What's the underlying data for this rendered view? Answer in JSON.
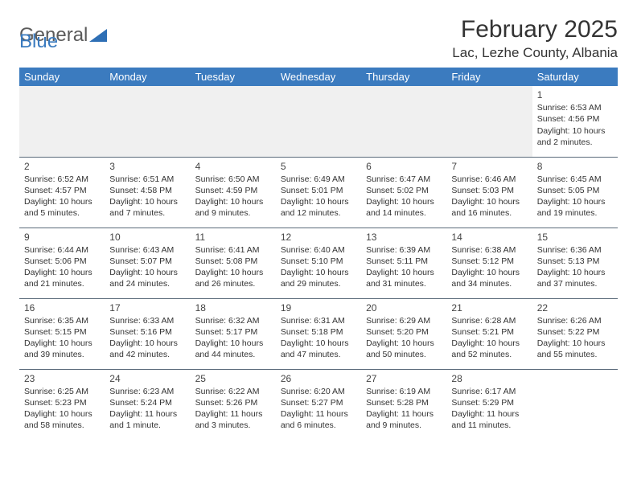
{
  "logo": {
    "word1": "General",
    "word2": "Blue"
  },
  "header": {
    "month_title": "February 2025",
    "location": "Lac, Lezhe County, Albania"
  },
  "colors": {
    "header_bg": "#3b7bbf",
    "header_text": "#ffffff",
    "rule": "#5a6a7a",
    "empty_row_bg": "#f0f0f0",
    "text": "#333333",
    "logo_gray": "#5a5a5a",
    "logo_blue": "#3b7bbf"
  },
  "weekdays": [
    "Sunday",
    "Monday",
    "Tuesday",
    "Wednesday",
    "Thursday",
    "Friday",
    "Saturday"
  ],
  "weeks": [
    [
      null,
      null,
      null,
      null,
      null,
      null,
      {
        "day": "1",
        "sunrise": "Sunrise: 6:53 AM",
        "sunset": "Sunset: 4:56 PM",
        "daylight": "Daylight: 10 hours and 2 minutes."
      }
    ],
    [
      {
        "day": "2",
        "sunrise": "Sunrise: 6:52 AM",
        "sunset": "Sunset: 4:57 PM",
        "daylight": "Daylight: 10 hours and 5 minutes."
      },
      {
        "day": "3",
        "sunrise": "Sunrise: 6:51 AM",
        "sunset": "Sunset: 4:58 PM",
        "daylight": "Daylight: 10 hours and 7 minutes."
      },
      {
        "day": "4",
        "sunrise": "Sunrise: 6:50 AM",
        "sunset": "Sunset: 4:59 PM",
        "daylight": "Daylight: 10 hours and 9 minutes."
      },
      {
        "day": "5",
        "sunrise": "Sunrise: 6:49 AM",
        "sunset": "Sunset: 5:01 PM",
        "daylight": "Daylight: 10 hours and 12 minutes."
      },
      {
        "day": "6",
        "sunrise": "Sunrise: 6:47 AM",
        "sunset": "Sunset: 5:02 PM",
        "daylight": "Daylight: 10 hours and 14 minutes."
      },
      {
        "day": "7",
        "sunrise": "Sunrise: 6:46 AM",
        "sunset": "Sunset: 5:03 PM",
        "daylight": "Daylight: 10 hours and 16 minutes."
      },
      {
        "day": "8",
        "sunrise": "Sunrise: 6:45 AM",
        "sunset": "Sunset: 5:05 PM",
        "daylight": "Daylight: 10 hours and 19 minutes."
      }
    ],
    [
      {
        "day": "9",
        "sunrise": "Sunrise: 6:44 AM",
        "sunset": "Sunset: 5:06 PM",
        "daylight": "Daylight: 10 hours and 21 minutes."
      },
      {
        "day": "10",
        "sunrise": "Sunrise: 6:43 AM",
        "sunset": "Sunset: 5:07 PM",
        "daylight": "Daylight: 10 hours and 24 minutes."
      },
      {
        "day": "11",
        "sunrise": "Sunrise: 6:41 AM",
        "sunset": "Sunset: 5:08 PM",
        "daylight": "Daylight: 10 hours and 26 minutes."
      },
      {
        "day": "12",
        "sunrise": "Sunrise: 6:40 AM",
        "sunset": "Sunset: 5:10 PM",
        "daylight": "Daylight: 10 hours and 29 minutes."
      },
      {
        "day": "13",
        "sunrise": "Sunrise: 6:39 AM",
        "sunset": "Sunset: 5:11 PM",
        "daylight": "Daylight: 10 hours and 31 minutes."
      },
      {
        "day": "14",
        "sunrise": "Sunrise: 6:38 AM",
        "sunset": "Sunset: 5:12 PM",
        "daylight": "Daylight: 10 hours and 34 minutes."
      },
      {
        "day": "15",
        "sunrise": "Sunrise: 6:36 AM",
        "sunset": "Sunset: 5:13 PM",
        "daylight": "Daylight: 10 hours and 37 minutes."
      }
    ],
    [
      {
        "day": "16",
        "sunrise": "Sunrise: 6:35 AM",
        "sunset": "Sunset: 5:15 PM",
        "daylight": "Daylight: 10 hours and 39 minutes."
      },
      {
        "day": "17",
        "sunrise": "Sunrise: 6:33 AM",
        "sunset": "Sunset: 5:16 PM",
        "daylight": "Daylight: 10 hours and 42 minutes."
      },
      {
        "day": "18",
        "sunrise": "Sunrise: 6:32 AM",
        "sunset": "Sunset: 5:17 PM",
        "daylight": "Daylight: 10 hours and 44 minutes."
      },
      {
        "day": "19",
        "sunrise": "Sunrise: 6:31 AM",
        "sunset": "Sunset: 5:18 PM",
        "daylight": "Daylight: 10 hours and 47 minutes."
      },
      {
        "day": "20",
        "sunrise": "Sunrise: 6:29 AM",
        "sunset": "Sunset: 5:20 PM",
        "daylight": "Daylight: 10 hours and 50 minutes."
      },
      {
        "day": "21",
        "sunrise": "Sunrise: 6:28 AM",
        "sunset": "Sunset: 5:21 PM",
        "daylight": "Daylight: 10 hours and 52 minutes."
      },
      {
        "day": "22",
        "sunrise": "Sunrise: 6:26 AM",
        "sunset": "Sunset: 5:22 PM",
        "daylight": "Daylight: 10 hours and 55 minutes."
      }
    ],
    [
      {
        "day": "23",
        "sunrise": "Sunrise: 6:25 AM",
        "sunset": "Sunset: 5:23 PM",
        "daylight": "Daylight: 10 hours and 58 minutes."
      },
      {
        "day": "24",
        "sunrise": "Sunrise: 6:23 AM",
        "sunset": "Sunset: 5:24 PM",
        "daylight": "Daylight: 11 hours and 1 minute."
      },
      {
        "day": "25",
        "sunrise": "Sunrise: 6:22 AM",
        "sunset": "Sunset: 5:26 PM",
        "daylight": "Daylight: 11 hours and 3 minutes."
      },
      {
        "day": "26",
        "sunrise": "Sunrise: 6:20 AM",
        "sunset": "Sunset: 5:27 PM",
        "daylight": "Daylight: 11 hours and 6 minutes."
      },
      {
        "day": "27",
        "sunrise": "Sunrise: 6:19 AM",
        "sunset": "Sunset: 5:28 PM",
        "daylight": "Daylight: 11 hours and 9 minutes."
      },
      {
        "day": "28",
        "sunrise": "Sunrise: 6:17 AM",
        "sunset": "Sunset: 5:29 PM",
        "daylight": "Daylight: 11 hours and 11 minutes."
      },
      null
    ]
  ]
}
